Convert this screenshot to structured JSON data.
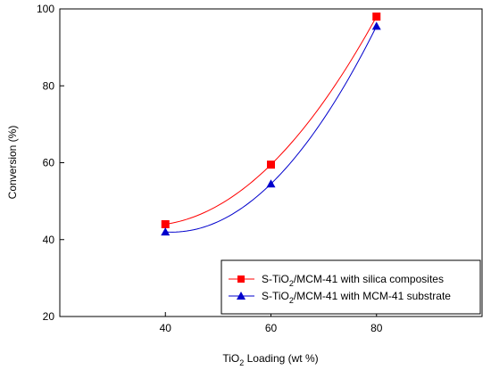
{
  "chart_data": {
    "type": "line",
    "x": [
      40,
      60,
      80
    ],
    "xlim": [
      20,
      100
    ],
    "ylim": [
      20,
      100
    ],
    "xticks": [
      40,
      60,
      80
    ],
    "yticks": [
      20,
      40,
      60,
      80,
      100
    ],
    "xlabel_parts": {
      "pre": "TiO",
      "sub": "2",
      "post": " Loading (wt %)"
    },
    "ylabel": "Conversion (%)",
    "grid": false,
    "legend_position": "bottom-right",
    "series": [
      {
        "name_parts": {
          "pre": "S-TiO",
          "sub": "2",
          "post": "/MCM-41 with silica composites"
        },
        "values": [
          44,
          59.5,
          98
        ],
        "color": "#ff0000",
        "marker": "square"
      },
      {
        "name_parts": {
          "pre": "S-TiO",
          "sub": "2",
          "post": "/MCM-41 with MCM-41 substrate"
        },
        "values": [
          42,
          54.5,
          95.5
        ],
        "color": "#0000cc",
        "marker": "triangle"
      }
    ]
  }
}
